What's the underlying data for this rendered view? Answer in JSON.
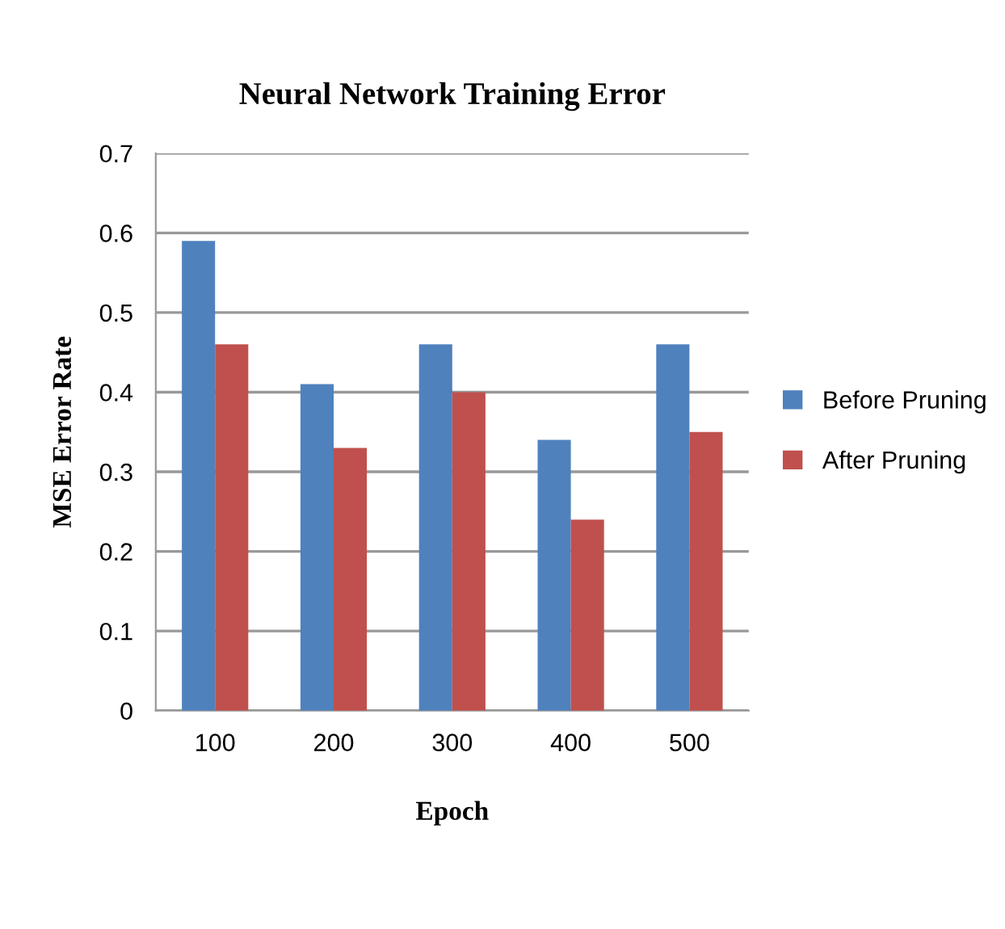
{
  "chart_data": {
    "type": "bar",
    "title": "Neural Network Training Error",
    "xlabel": "Epoch",
    "ylabel": "MSE Error Rate",
    "categories": [
      "100",
      "200",
      "300",
      "400",
      "500"
    ],
    "series": [
      {
        "name": "Before Pruning",
        "color": "#4f81bd",
        "values": [
          0.59,
          0.41,
          0.46,
          0.34,
          0.46
        ]
      },
      {
        "name": "After Pruning",
        "color": "#c0504d",
        "values": [
          0.46,
          0.33,
          0.4,
          0.24,
          0.35
        ]
      }
    ],
    "ylim": [
      0,
      0.7
    ],
    "yticks": [
      0,
      0.1,
      0.2,
      0.3,
      0.4,
      0.5,
      0.6,
      0.7
    ],
    "grid": "y",
    "legend": "right"
  }
}
